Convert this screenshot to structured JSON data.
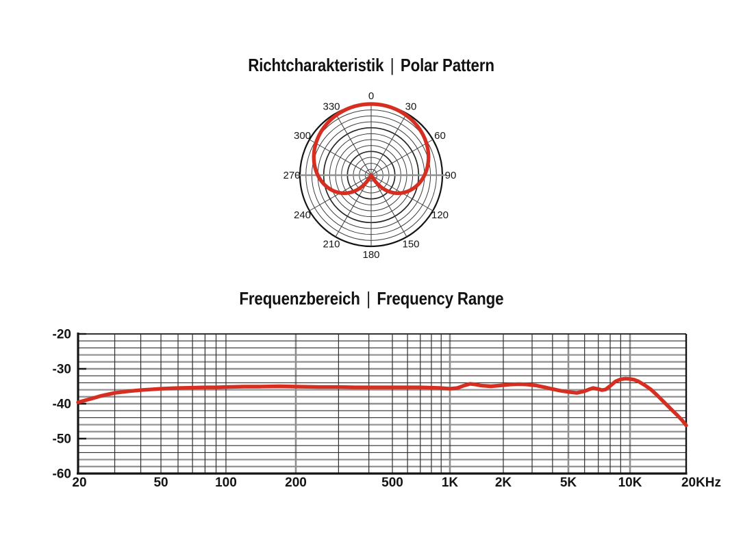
{
  "colors": {
    "curve_red": "#d62f22",
    "grid_black": "#2e2e2e",
    "grid_gray": "#8f8f8f",
    "frame_black": "#141414",
    "label_color": "#141414",
    "background": "#ffffff"
  },
  "polar_section": {
    "title_de": "Richtcharakteristik",
    "separator": "|",
    "title_en": "Polar Pattern",
    "angle_labels": [
      "0",
      "30",
      "60",
      "90",
      "120",
      "150",
      "180",
      "210",
      "240",
      "270",
      "300",
      "330"
    ]
  },
  "freq_section": {
    "title_de": "Frequenzbereich",
    "separator": "|",
    "title_en": "Frequency Range",
    "y_tick_labels": [
      "-20",
      "-30",
      "-40",
      "-50",
      "-60"
    ],
    "x_tick_labels": [
      "20",
      "50",
      "100",
      "200",
      "500",
      "1K",
      "2K",
      "5K",
      "10K",
      "20KHz"
    ]
  },
  "chart_data": [
    {
      "type": "polar_line",
      "title": "Richtcharakteristik | Polar Pattern",
      "pattern": "cardioid",
      "angle_ticks_deg": [
        0,
        30,
        60,
        90,
        120,
        150,
        180,
        210,
        240,
        270,
        300,
        330
      ],
      "rings": 12,
      "db_per_ring": 2,
      "scale_floor_db": -24,
      "response_db_by_angle": [
        [
          0,
          0
        ],
        [
          15,
          -0.15
        ],
        [
          30,
          -0.6
        ],
        [
          45,
          -1.4
        ],
        [
          60,
          -2.5
        ],
        [
          75,
          -4.0
        ],
        [
          90,
          -6.0
        ],
        [
          105,
          -8.6
        ],
        [
          120,
          -12.0
        ],
        [
          135,
          -16.7
        ],
        [
          150,
          -23.5
        ],
        [
          165,
          null
        ],
        [
          180,
          null
        ]
      ],
      "legend": "none",
      "grid": true
    },
    {
      "type": "line",
      "title": "Frequenzbereich | Frequency Range",
      "x_scale": "log",
      "x_unit": "Hz",
      "y_unit": "dB",
      "xlim": [
        20,
        20000
      ],
      "ylim": [
        -60,
        -20
      ],
      "x_major_ticks": [
        20,
        50,
        100,
        200,
        500,
        1000,
        2000,
        5000,
        10000,
        20000
      ],
      "x_minor_ticks": [
        30,
        40,
        60,
        70,
        80,
        90,
        300,
        400,
        600,
        700,
        800,
        900,
        3000,
        4000,
        6000,
        7000,
        8000,
        9000
      ],
      "x_emphasized_gridlines": [
        200,
        1000,
        5000,
        10000
      ],
      "y_major_ticks": [
        -20,
        -30,
        -40,
        -50,
        -60
      ],
      "y_minor_step_db": 2,
      "x_anchor_fractions": [
        [
          20,
          0
        ],
        [
          50,
          0.1363
        ],
        [
          100,
          0.2432
        ],
        [
          200,
          0.3581
        ],
        [
          500,
          0.5169
        ],
        [
          1000,
          0.6115
        ],
        [
          2000,
          0.6993
        ],
        [
          5000,
          0.8063
        ],
        [
          10000,
          0.9077
        ],
        [
          20000,
          1
        ]
      ],
      "grid": true,
      "legend": "none",
      "points": [
        [
          20,
          -39.6
        ],
        [
          23,
          -38.6
        ],
        [
          26,
          -37.7
        ],
        [
          30,
          -36.9
        ],
        [
          35,
          -36.4
        ],
        [
          40,
          -36.1
        ],
        [
          45,
          -35.9
        ],
        [
          50,
          -35.7
        ],
        [
          60,
          -35.5
        ],
        [
          70,
          -35.4
        ],
        [
          80,
          -35.3
        ],
        [
          90,
          -35.3
        ],
        [
          100,
          -35.2
        ],
        [
          120,
          -35.1
        ],
        [
          140,
          -35.1
        ],
        [
          170,
          -35.0
        ],
        [
          200,
          -35.1
        ],
        [
          250,
          -35.2
        ],
        [
          300,
          -35.2
        ],
        [
          350,
          -35.3
        ],
        [
          400,
          -35.3
        ],
        [
          500,
          -35.3
        ],
        [
          600,
          -35.3
        ],
        [
          700,
          -35.3
        ],
        [
          800,
          -35.4
        ],
        [
          900,
          -35.5
        ],
        [
          1000,
          -35.7
        ],
        [
          1100,
          -35.5
        ],
        [
          1200,
          -34.8
        ],
        [
          1300,
          -34.3
        ],
        [
          1400,
          -34.5
        ],
        [
          1500,
          -34.8
        ],
        [
          1700,
          -35.0
        ],
        [
          2000,
          -34.7
        ],
        [
          2200,
          -34.5
        ],
        [
          2500,
          -34.4
        ],
        [
          2800,
          -34.5
        ],
        [
          3200,
          -34.8
        ],
        [
          3600,
          -35.3
        ],
        [
          4000,
          -35.8
        ],
        [
          4500,
          -36.3
        ],
        [
          5000,
          -36.6
        ],
        [
          5500,
          -36.9
        ],
        [
          6000,
          -36.4
        ],
        [
          6300,
          -35.9
        ],
        [
          6600,
          -35.5
        ],
        [
          7000,
          -35.8
        ],
        [
          7300,
          -36.1
        ],
        [
          7600,
          -35.9
        ],
        [
          8000,
          -34.9
        ],
        [
          8500,
          -33.6
        ],
        [
          9000,
          -33.0
        ],
        [
          9500,
          -32.8
        ],
        [
          10000,
          -32.9
        ],
        [
          10500,
          -33.1
        ],
        [
          11000,
          -33.5
        ],
        [
          12000,
          -34.7
        ],
        [
          13000,
          -36.0
        ],
        [
          14000,
          -37.6
        ],
        [
          15000,
          -39.2
        ],
        [
          16000,
          -40.7
        ],
        [
          17000,
          -42.1
        ],
        [
          18000,
          -43.4
        ],
        [
          19000,
          -44.7
        ],
        [
          20000,
          -46.2
        ]
      ]
    }
  ]
}
